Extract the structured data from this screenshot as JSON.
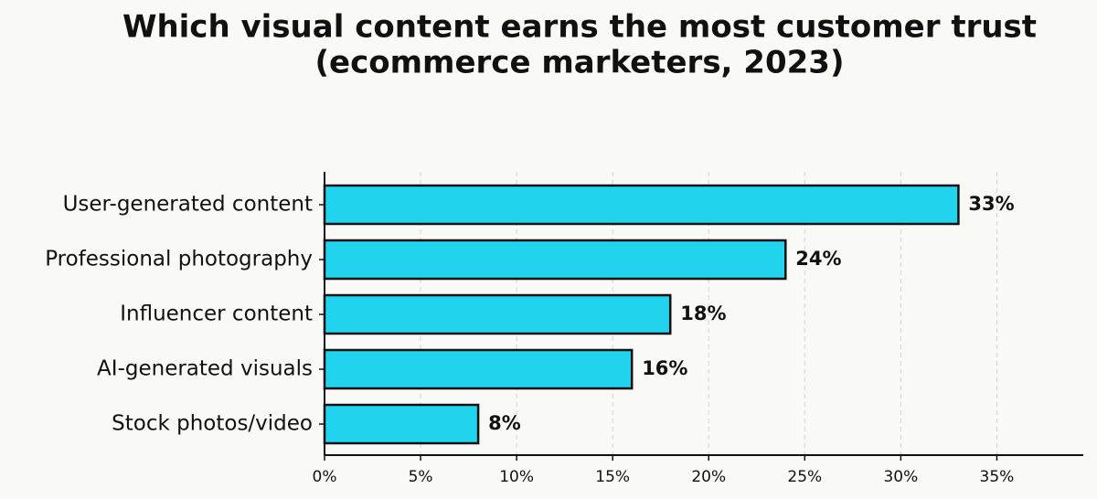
{
  "chart_data": {
    "type": "barh",
    "title": "Which visual content earns the most customer trust",
    "subtitle": "(ecommerce marketers, 2023)",
    "categories": [
      "User-generated content",
      "Professional photography",
      "Influencer content",
      "AI-generated visuals",
      "Stock photos/video"
    ],
    "values": [
      33,
      24,
      18,
      16,
      8
    ],
    "value_labels": [
      "33%",
      "24%",
      "18%",
      "16%",
      "8%"
    ],
    "color": "#22d3ee",
    "xlim": [
      0,
      39.5
    ],
    "xticks": [
      {
        "value": 0,
        "label": "0%"
      },
      {
        "value": 5,
        "label": "5%"
      },
      {
        "value": 10,
        "label": "10%"
      },
      {
        "value": 15,
        "label": "15%"
      },
      {
        "value": 20,
        "label": "20%"
      },
      {
        "value": 25,
        "label": "25%"
      },
      {
        "value": 30,
        "label": "30%"
      },
      {
        "value": 35,
        "label": "35%"
      }
    ],
    "grid": true
  }
}
